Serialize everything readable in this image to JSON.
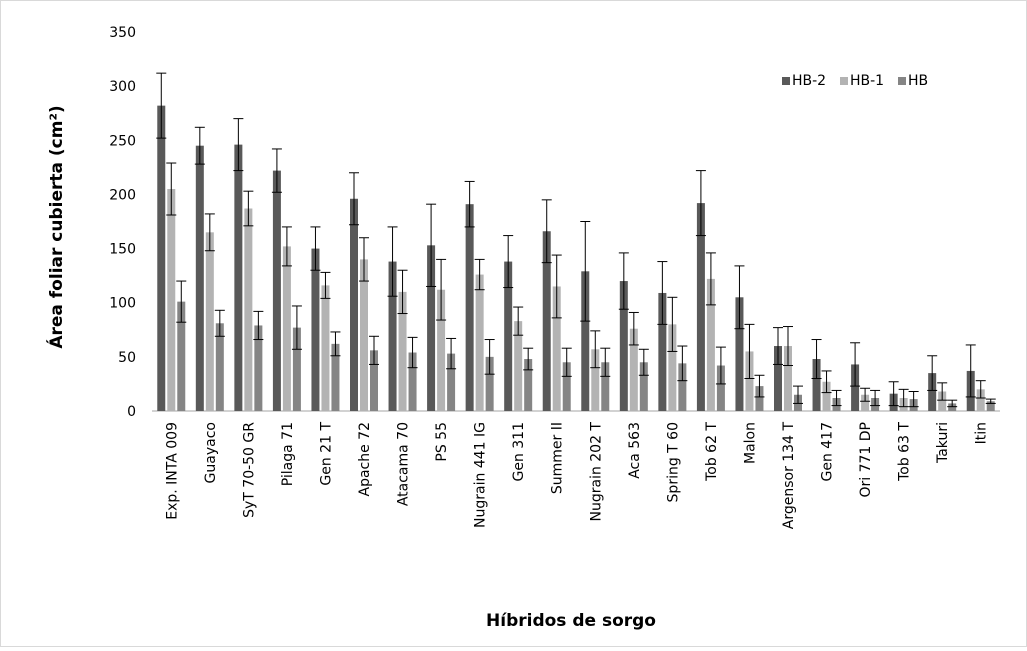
{
  "chart_data": {
    "type": "bar",
    "title": "",
    "xlabel": "Híbridos de sorgo",
    "ylabel": "Área foliar cubierta (cm²)",
    "ylim": [
      0,
      350
    ],
    "yticks": [
      0,
      50,
      100,
      150,
      200,
      250,
      300,
      350
    ],
    "grid": false,
    "legend_position": "top-right",
    "error_bars": true,
    "categories": [
      "Exp. INTA 009",
      "Guayaco",
      "SyT 70-50 GR",
      "Pilaga 71",
      "Gen 21 T",
      "Apache 72",
      "Atacama 70",
      "PS 55",
      "Nugrain 441 IG",
      "Gen 311",
      "Summer II",
      "Nugrain 202 T",
      "Aca 563",
      "Spring T 60",
      "Tob 62 T",
      "Malon",
      "Argensor 134 T",
      "Gen 417",
      "Ori 771 DP",
      "Tob 63 T",
      "Takuri",
      "Itin"
    ],
    "series": [
      {
        "name": "HB-2",
        "color": "#595959",
        "values": [
          282,
          245,
          246,
          222,
          150,
          196,
          138,
          153,
          191,
          138,
          166,
          129,
          120,
          109,
          192,
          105,
          60,
          48,
          43,
          16,
          35,
          37
        ],
        "errors": [
          30,
          17,
          24,
          20,
          20,
          24,
          32,
          38,
          21,
          24,
          29,
          46,
          26,
          29,
          30,
          29,
          17,
          18,
          20,
          11,
          16,
          24
        ]
      },
      {
        "name": "HB-1",
        "color": "#b3b3b3",
        "values": [
          205,
          165,
          187,
          152,
          116,
          140,
          110,
          112,
          126,
          83,
          115,
          57,
          76,
          80,
          122,
          55,
          60,
          27,
          15,
          12,
          18,
          20
        ],
        "errors": [
          24,
          17,
          16,
          18,
          12,
          20,
          20,
          28,
          14,
          13,
          29,
          17,
          15,
          25,
          24,
          25,
          18,
          10,
          6,
          8,
          8,
          8
        ]
      },
      {
        "name": "HB",
        "color": "#858585",
        "values": [
          101,
          81,
          79,
          77,
          62,
          56,
          54,
          53,
          50,
          48,
          45,
          45,
          45,
          44,
          42,
          23,
          15,
          12,
          12,
          11,
          7,
          9
        ],
        "errors": [
          19,
          12,
          13,
          20,
          11,
          13,
          14,
          14,
          16,
          10,
          13,
          13,
          12,
          16,
          17,
          10,
          8,
          7,
          7,
          7,
          3,
          2
        ]
      }
    ]
  }
}
